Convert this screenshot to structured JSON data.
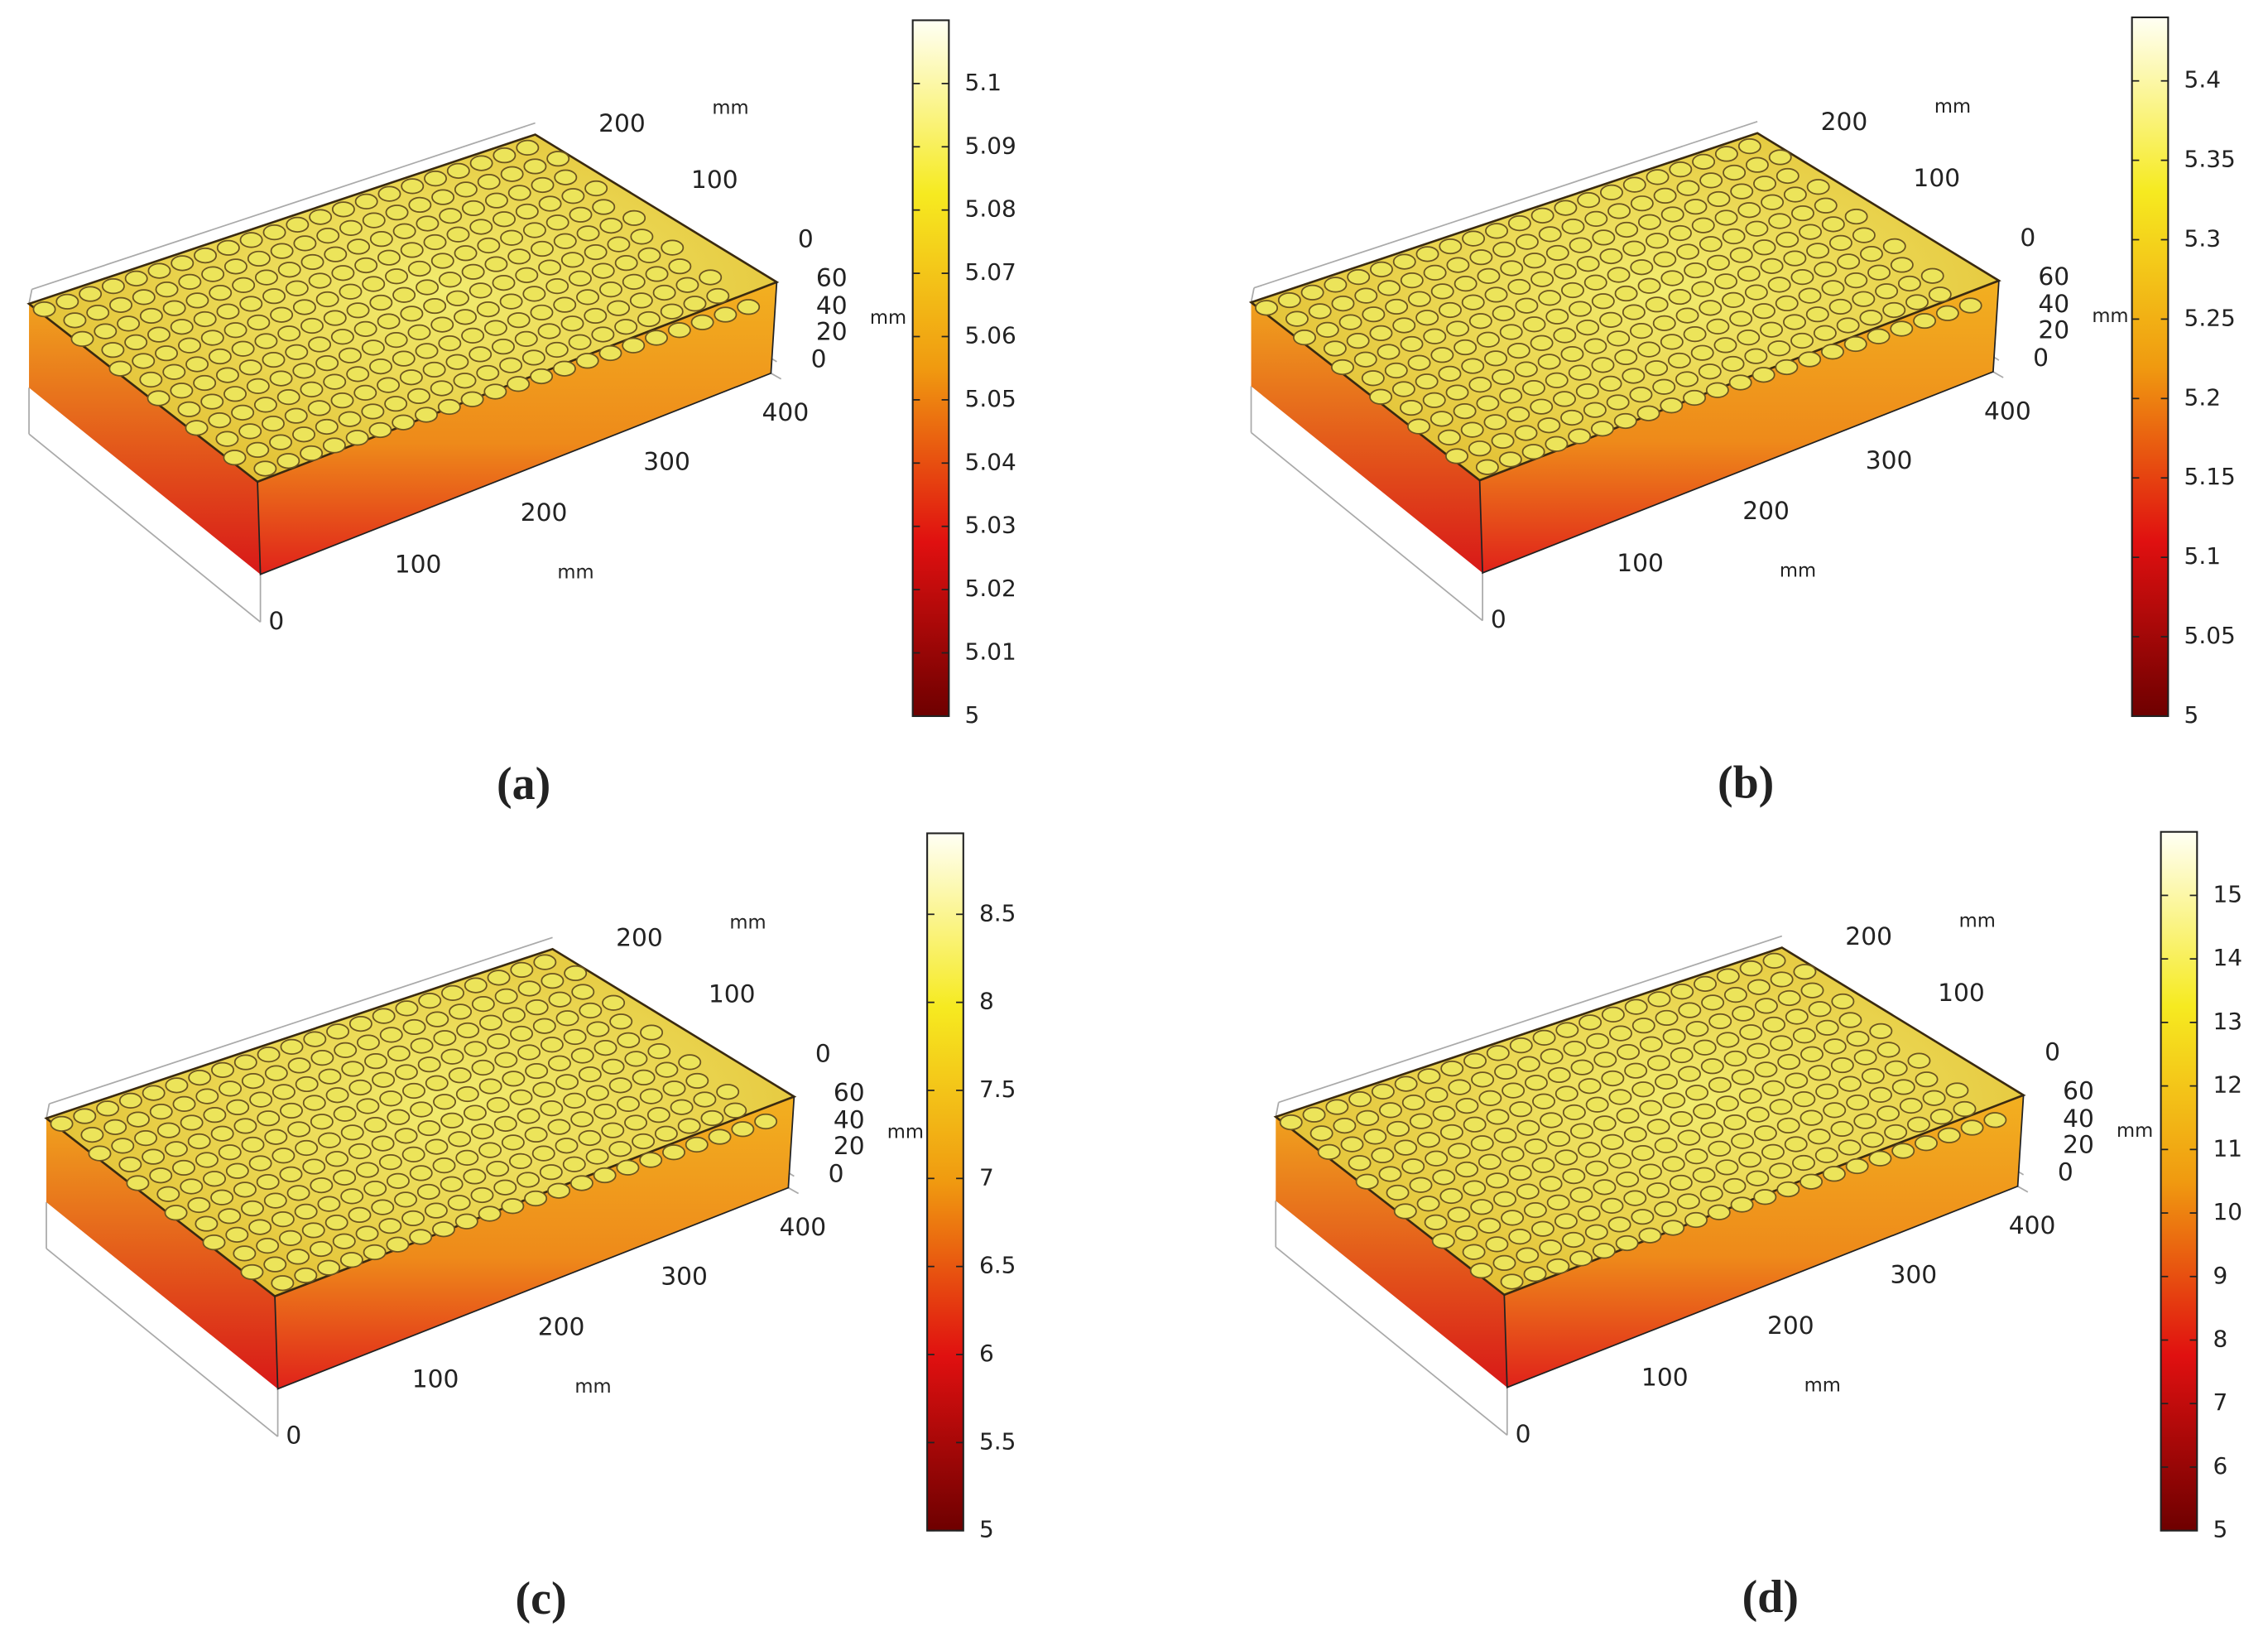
{
  "panels": [
    {
      "label": "(a)",
      "axes": {
        "y_ticks": [
          200,
          100,
          0
        ],
        "y_unit": "mm",
        "z_ticks": [
          60,
          40,
          20,
          0
        ],
        "z_unit": "mm",
        "x_ticks": [
          400,
          300,
          200,
          100,
          0
        ],
        "x_unit": "mm"
      },
      "colorbar": {
        "min": 5,
        "max": 5.11,
        "ticks": [
          5,
          5.01,
          5.02,
          5.03,
          5.04,
          5.05,
          5.06,
          5.07,
          5.08,
          5.09,
          5.1
        ]
      }
    },
    {
      "label": "(b)",
      "axes": {
        "y_ticks": [
          200,
          100,
          0
        ],
        "y_unit": "mm",
        "z_ticks": [
          60,
          40,
          20,
          0
        ],
        "z_unit": "mm",
        "x_ticks": [
          400,
          300,
          200,
          100,
          0
        ],
        "x_unit": "mm"
      },
      "colorbar": {
        "min": 5,
        "max": 5.44,
        "ticks": [
          5,
          5.05,
          5.1,
          5.15,
          5.2,
          5.25,
          5.3,
          5.35,
          5.4
        ]
      }
    },
    {
      "label": "(c)",
      "axes": {
        "y_ticks": [
          200,
          100,
          0
        ],
        "y_unit": "mm",
        "z_ticks": [
          60,
          40,
          20,
          0
        ],
        "z_unit": "mm",
        "x_ticks": [
          400,
          300,
          200,
          100,
          0
        ],
        "x_unit": "mm"
      },
      "colorbar": {
        "min": 5,
        "max": 8.96,
        "ticks": [
          5,
          5.5,
          6,
          6.5,
          7,
          7.5,
          8,
          8.5
        ]
      }
    },
    {
      "label": "(d)",
      "axes": {
        "y_ticks": [
          200,
          100,
          0
        ],
        "y_unit": "mm",
        "z_ticks": [
          60,
          40,
          20,
          0
        ],
        "z_unit": "mm",
        "x_ticks": [
          400,
          300,
          200,
          100,
          0
        ],
        "x_unit": "mm"
      },
      "colorbar": {
        "min": 5,
        "max": 16,
        "ticks": [
          5,
          6,
          7,
          8,
          9,
          10,
          11,
          12,
          13,
          14,
          15
        ]
      }
    }
  ]
}
